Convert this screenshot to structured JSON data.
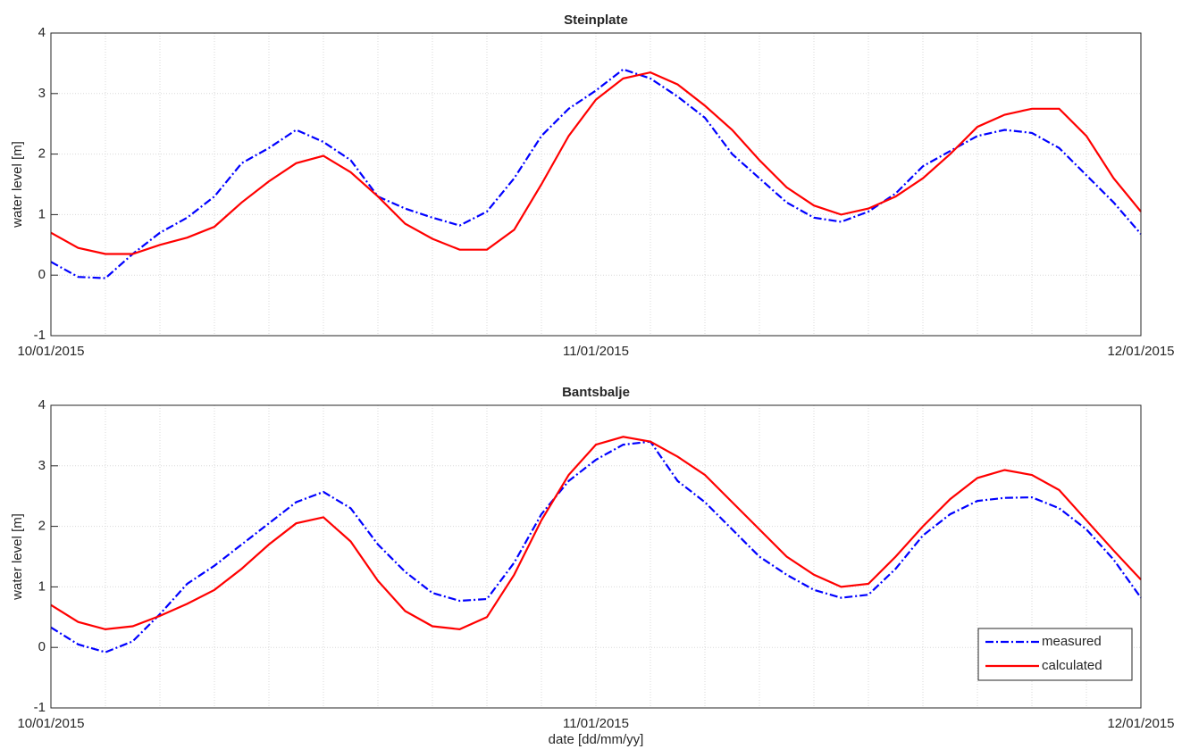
{
  "chart_data": [
    {
      "type": "line",
      "title": "Steinplate",
      "ylabel": "water level [m]",
      "x": [
        0,
        1.2,
        2.4,
        3.6,
        4.8,
        6,
        7.2,
        8.4,
        9.6,
        10.8,
        12,
        13.2,
        14.4,
        15.6,
        16.8,
        18,
        19.2,
        20.4,
        21.6,
        22.8,
        24,
        25.2,
        26.4,
        27.6,
        28.8,
        30,
        31.2,
        32.4,
        33.6,
        34.8,
        36,
        37.2,
        38.4,
        39.6,
        40.8,
        42,
        43.2,
        44.4,
        45.6,
        46.8,
        48
      ],
      "series": [
        {
          "color": "#0000ff",
          "linestyle": "dashdot",
          "values": [
            0.22,
            -0.03,
            -0.05,
            0.35,
            0.7,
            0.95,
            1.3,
            1.85,
            2.1,
            2.4,
            2.2,
            1.9,
            1.3,
            1.1,
            0.95,
            0.82,
            1.05,
            1.6,
            2.3,
            2.75,
            3.05,
            3.4,
            3.25,
            2.95,
            2.6,
            2.0,
            1.6,
            1.2,
            0.95,
            0.88,
            1.05,
            1.35,
            1.8,
            2.05,
            2.3,
            2.4,
            2.35,
            2.1,
            1.65,
            1.2,
            0.68
          ]
        },
        {
          "color": "#ff0000",
          "linestyle": "solid",
          "values": [
            0.7,
            0.45,
            0.35,
            0.35,
            0.5,
            0.62,
            0.8,
            1.2,
            1.55,
            1.85,
            1.97,
            1.7,
            1.3,
            0.85,
            0.6,
            0.42,
            0.42,
            0.75,
            1.5,
            2.3,
            2.9,
            3.25,
            3.35,
            3.15,
            2.8,
            2.4,
            1.9,
            1.45,
            1.15,
            1.0,
            1.1,
            1.3,
            1.6,
            2.0,
            2.45,
            2.65,
            2.75,
            2.75,
            2.3,
            1.6,
            1.05
          ]
        }
      ],
      "xlim": [
        0,
        48
      ],
      "xticks": [
        {
          "value": 0,
          "label": "10/01/2015"
        },
        {
          "value": 24,
          "label": "11/01/2015"
        },
        {
          "value": 48,
          "label": "12/01/2015"
        }
      ],
      "xminorticks": [
        2.4,
        4.8,
        7.2,
        9.6,
        12,
        14.4,
        16.8,
        19.2,
        21.6,
        26.4,
        28.8,
        31.2,
        33.6,
        36,
        38.4,
        40.8,
        43.2,
        45.6
      ],
      "ylim": [
        -1,
        4
      ],
      "yticks": [
        -1,
        0,
        1,
        2,
        3,
        4
      ],
      "grid": true
    },
    {
      "type": "line",
      "title": "Bantsbalje",
      "ylabel": "water level [m]",
      "xlabel": "date [dd/mm/yy]",
      "x": [
        0,
        1.2,
        2.4,
        3.6,
        4.8,
        6,
        7.2,
        8.4,
        9.6,
        10.8,
        12,
        13.2,
        14.4,
        15.6,
        16.8,
        18,
        19.2,
        20.4,
        21.6,
        22.8,
        24,
        25.2,
        26.4,
        27.6,
        28.8,
        30,
        31.2,
        32.4,
        33.6,
        34.8,
        36,
        37.2,
        38.4,
        39.6,
        40.8,
        42,
        43.2,
        44.4,
        45.6,
        46.8,
        48
      ],
      "series": [
        {
          "name": "measured",
          "color": "#0000ff",
          "linestyle": "dashdot",
          "values": [
            0.33,
            0.05,
            -0.08,
            0.1,
            0.55,
            1.05,
            1.35,
            1.7,
            2.05,
            2.4,
            2.57,
            2.3,
            1.7,
            1.25,
            0.9,
            0.77,
            0.8,
            1.4,
            2.2,
            2.75,
            3.1,
            3.35,
            3.4,
            2.75,
            2.4,
            1.95,
            1.5,
            1.2,
            0.95,
            0.82,
            0.87,
            1.3,
            1.85,
            2.2,
            2.42,
            2.47,
            2.48,
            2.3,
            1.95,
            1.45,
            0.82
          ]
        },
        {
          "name": "calculated",
          "color": "#ff0000",
          "linestyle": "solid",
          "values": [
            0.7,
            0.42,
            0.3,
            0.35,
            0.52,
            0.72,
            0.95,
            1.3,
            1.7,
            2.05,
            2.15,
            1.75,
            1.1,
            0.6,
            0.35,
            0.3,
            0.5,
            1.2,
            2.1,
            2.85,
            3.35,
            3.48,
            3.4,
            3.15,
            2.85,
            2.4,
            1.95,
            1.5,
            1.2,
            1.0,
            1.05,
            1.5,
            2.0,
            2.45,
            2.8,
            2.93,
            2.85,
            2.6,
            2.1,
            1.6,
            1.12
          ]
        }
      ],
      "xlim": [
        0,
        48
      ],
      "xticks": [
        {
          "value": 0,
          "label": "10/01/2015"
        },
        {
          "value": 24,
          "label": "11/01/2015"
        },
        {
          "value": 48,
          "label": "12/01/2015"
        }
      ],
      "xminorticks": [
        2.4,
        4.8,
        7.2,
        9.6,
        12,
        14.4,
        16.8,
        19.2,
        21.6,
        26.4,
        28.8,
        31.2,
        33.6,
        36,
        38.4,
        40.8,
        43.2,
        45.6
      ],
      "ylim": [
        -1,
        4
      ],
      "yticks": [
        -1,
        0,
        1,
        2,
        3,
        4
      ],
      "grid": true,
      "legend": "lower right"
    }
  ]
}
